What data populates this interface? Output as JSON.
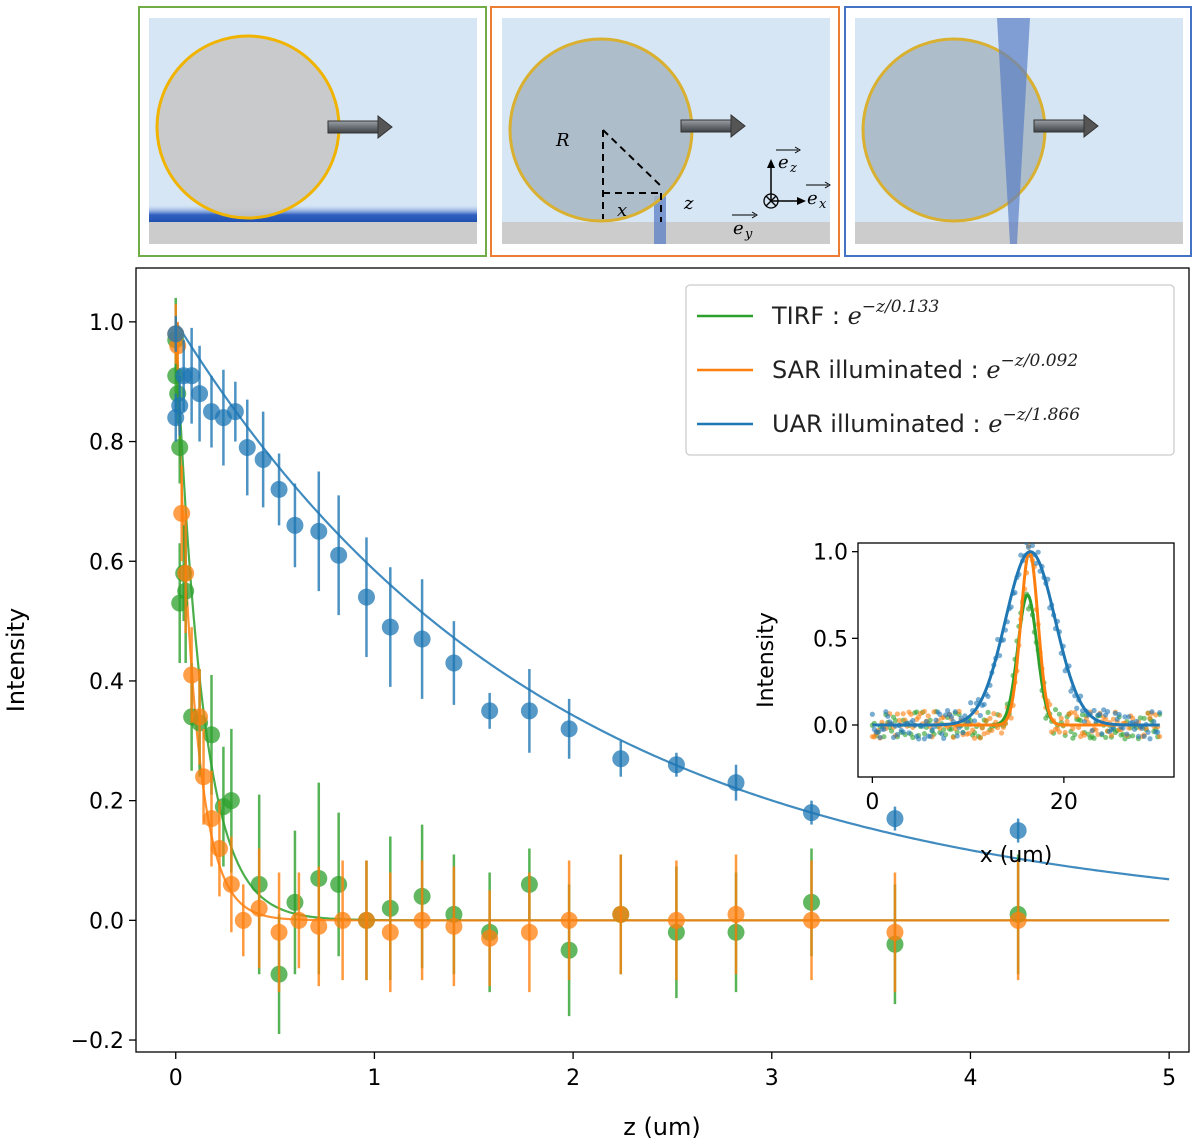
{
  "panels": {
    "middle_labels": {
      "R": "R",
      "x": "x",
      "z": "z",
      "ez": "e",
      "ez_sub": "z",
      "ex": "e",
      "ex_sub": "x",
      "ey": "e",
      "ey_sub": "y"
    },
    "colors": {
      "green_frame": "#70ad47",
      "orange_frame": "#ed7d31",
      "blue_frame": "#4472c4",
      "medium": "#d6e6f5",
      "substrate": "#cccccc",
      "sphere_fill": "#c8c8c8",
      "sphere_stroke": "#f0b400"
    }
  },
  "chart_data": [
    {
      "type": "scatter",
      "title": "",
      "xlabel": "z (um)",
      "ylabel": "Intensity",
      "xlim": [
        -0.2,
        5.1
      ],
      "ylim": [
        -0.22,
        1.09
      ],
      "xticks": [
        0,
        1,
        2,
        3,
        4,
        5
      ],
      "xtick_labels": [
        "0",
        "1",
        "2",
        "3",
        "4",
        "5"
      ],
      "yticks": [
        -0.2,
        0.0,
        0.2,
        0.4,
        0.6,
        0.8,
        1.0
      ],
      "ytick_labels": [
        "−0.2",
        "0.0",
        "0.2",
        "0.4",
        "0.6",
        "0.8",
        "1.0"
      ],
      "grid": false,
      "legend_position": "top-right",
      "series": [
        {
          "name": "TIRF",
          "legend_prefix": "TIRF : ",
          "legend_exp_base": "e",
          "legend_exp": "−z/0.133",
          "color": "#2ca02c",
          "fit_decay": 0.133,
          "points": [
            [
              0.0,
              0.97,
              0.07
            ],
            [
              0.0,
              0.91,
              0.06
            ],
            [
              0.01,
              0.88,
              0.05
            ],
            [
              0.02,
              0.79,
              0.06
            ],
            [
              0.02,
              0.53,
              0.1
            ],
            [
              0.04,
              0.58,
              0.08
            ],
            [
              0.05,
              0.55,
              0.12
            ],
            [
              0.08,
              0.34,
              0.09
            ],
            [
              0.12,
              0.33,
              0.09
            ],
            [
              0.18,
              0.31,
              0.1
            ],
            [
              0.24,
              0.19,
              0.1
            ],
            [
              0.28,
              0.2,
              0.12
            ],
            [
              0.42,
              0.06,
              0.15
            ],
            [
              0.52,
              -0.09,
              0.1
            ],
            [
              0.6,
              0.03,
              0.12
            ],
            [
              0.72,
              0.07,
              0.16
            ],
            [
              0.82,
              0.06,
              0.12
            ],
            [
              0.96,
              0.0,
              0.1
            ],
            [
              1.08,
              0.02,
              0.12
            ],
            [
              1.24,
              0.04,
              0.12
            ],
            [
              1.4,
              0.01,
              0.1
            ],
            [
              1.58,
              -0.02,
              0.1
            ],
            [
              1.78,
              0.06,
              0.06
            ],
            [
              1.98,
              -0.05,
              0.11
            ],
            [
              2.24,
              0.01,
              0.1
            ],
            [
              2.52,
              -0.02,
              0.11
            ],
            [
              2.82,
              -0.02,
              0.1
            ],
            [
              3.2,
              0.03,
              0.09
            ],
            [
              3.62,
              -0.04,
              0.1
            ],
            [
              4.24,
              0.01,
              0.1
            ]
          ]
        },
        {
          "name": "SAR illuminated",
          "legend_prefix": "SAR illuminated : ",
          "legend_exp_base": "e",
          "legend_exp": "−z/0.092",
          "color": "#ff7f0e",
          "fit_decay": 0.092,
          "points": [
            [
              0.0,
              0.98,
              0.05
            ],
            [
              0.01,
              0.96,
              0.04
            ],
            [
              0.03,
              0.68,
              0.08
            ],
            [
              0.05,
              0.58,
              0.1
            ],
            [
              0.08,
              0.41,
              0.08
            ],
            [
              0.12,
              0.34,
              0.08
            ],
            [
              0.14,
              0.24,
              0.08
            ],
            [
              0.18,
              0.17,
              0.08
            ],
            [
              0.22,
              0.12,
              0.08
            ],
            [
              0.28,
              0.06,
              0.08
            ],
            [
              0.34,
              0.0,
              0.06
            ],
            [
              0.42,
              0.02,
              0.1
            ],
            [
              0.52,
              -0.02,
              0.1
            ],
            [
              0.62,
              0.0,
              0.08
            ],
            [
              0.72,
              -0.01,
              0.1
            ],
            [
              0.84,
              0.0,
              0.1
            ],
            [
              0.96,
              0.0,
              0.1
            ],
            [
              1.08,
              -0.02,
              0.1
            ],
            [
              1.24,
              0.0,
              0.1
            ],
            [
              1.4,
              -0.01,
              0.1
            ],
            [
              1.58,
              -0.03,
              0.08
            ],
            [
              1.78,
              -0.02,
              0.1
            ],
            [
              1.98,
              0.0,
              0.1
            ],
            [
              2.24,
              0.01,
              0.1
            ],
            [
              2.52,
              0.0,
              0.1
            ],
            [
              2.82,
              0.01,
              0.1
            ],
            [
              3.2,
              0.0,
              0.1
            ],
            [
              3.62,
              -0.02,
              0.1
            ],
            [
              4.24,
              0.0,
              0.1
            ]
          ]
        },
        {
          "name": "UAR illuminated",
          "legend_prefix": "UAR illuminated : ",
          "legend_exp_base": "e",
          "legend_exp": "−z/1.866",
          "color": "#1f77b4",
          "fit_decay": 1.866,
          "points": [
            [
              0.0,
              0.98,
              0.03
            ],
            [
              0.0,
              0.84,
              0.04
            ],
            [
              0.02,
              0.86,
              0.05
            ],
            [
              0.04,
              0.91,
              0.06
            ],
            [
              0.08,
              0.91,
              0.08
            ],
            [
              0.12,
              0.88,
              0.08
            ],
            [
              0.18,
              0.85,
              0.06
            ],
            [
              0.24,
              0.84,
              0.08
            ],
            [
              0.3,
              0.85,
              0.05
            ],
            [
              0.36,
              0.79,
              0.08
            ],
            [
              0.44,
              0.77,
              0.08
            ],
            [
              0.52,
              0.72,
              0.06
            ],
            [
              0.6,
              0.66,
              0.07
            ],
            [
              0.72,
              0.65,
              0.1
            ],
            [
              0.82,
              0.61,
              0.1
            ],
            [
              0.96,
              0.54,
              0.1
            ],
            [
              1.08,
              0.49,
              0.1
            ],
            [
              1.24,
              0.47,
              0.1
            ],
            [
              1.4,
              0.43,
              0.07
            ],
            [
              1.58,
              0.35,
              0.03
            ],
            [
              1.78,
              0.35,
              0.07
            ],
            [
              1.98,
              0.32,
              0.05
            ],
            [
              2.24,
              0.27,
              0.03
            ],
            [
              2.52,
              0.26,
              0.02
            ],
            [
              2.82,
              0.23,
              0.03
            ],
            [
              3.2,
              0.18,
              0.02
            ],
            [
              3.62,
              0.17,
              0.02
            ],
            [
              4.24,
              0.15,
              0.02
            ]
          ]
        }
      ]
    },
    {
      "type": "scatter",
      "title": "",
      "xlabel": "x (um)",
      "ylabel": "Intensity",
      "xlim": [
        -1.5,
        31.5
      ],
      "ylim": [
        -0.3,
        1.05
      ],
      "xticks": [
        0,
        20
      ],
      "xtick_labels": [
        "0",
        "20"
      ],
      "yticks": [
        0.0,
        0.5,
        1.0
      ],
      "ytick_labels": [
        "0.0",
        "0.5",
        "1.0"
      ],
      "grid": false,
      "series": [
        {
          "name": "TIRF",
          "color": "#2ca02c",
          "amplitude": 0.75,
          "center": 16.2,
          "sigma": 1.0
        },
        {
          "name": "SAR illuminated",
          "color": "#ff7f0e",
          "amplitude": 1.0,
          "center": 16.4,
          "sigma": 0.9
        },
        {
          "name": "UAR illuminated",
          "color": "#1f77b4",
          "amplitude": 1.0,
          "center": 16.5,
          "sigma": 2.6
        }
      ]
    }
  ]
}
